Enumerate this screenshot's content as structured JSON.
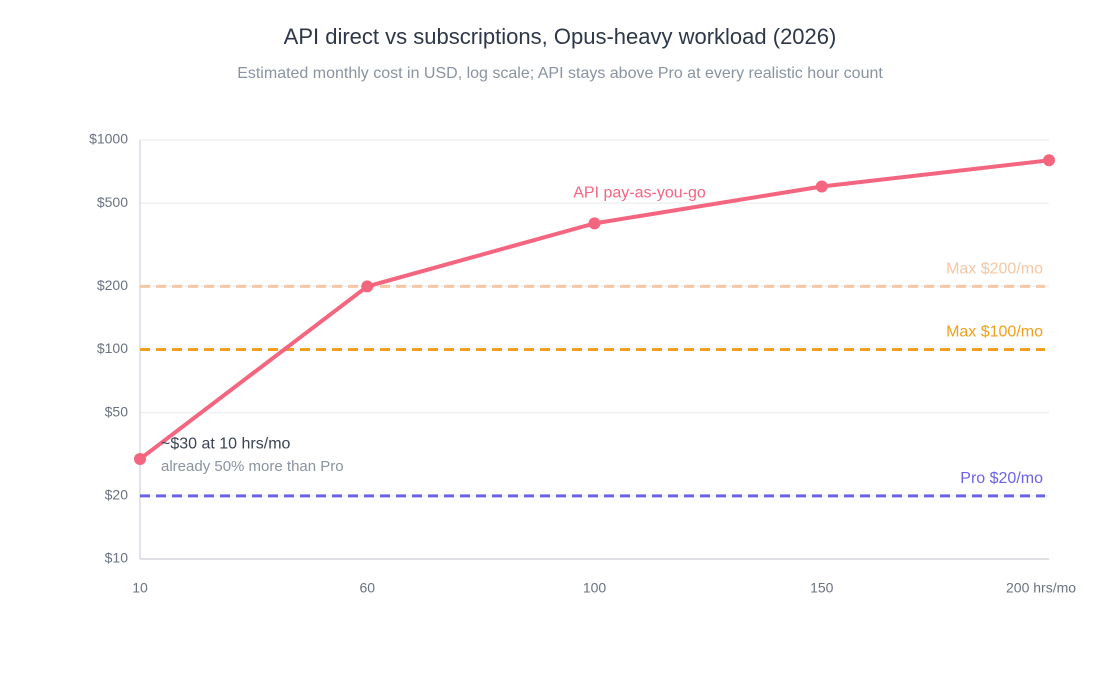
{
  "chart_data": {
    "type": "line",
    "title": "API direct vs subscriptions, Opus-heavy workload (2026)",
    "subtitle": "Estimated monthly cost in USD, log scale; API stays above Pro at every realistic hour count",
    "categories": [
      "10",
      "60",
      "100",
      "150",
      "200 hrs/mo"
    ],
    "series": [
      {
        "name": "API pay-as-you-go",
        "color": "#f4657f",
        "values": [
          30,
          200,
          400,
          600,
          800
        ]
      }
    ],
    "reference_lines": [
      {
        "label": "Max $200/mo",
        "value": 200,
        "color": "#f5c7a3"
      },
      {
        "label": "Max $100/mo",
        "value": 100,
        "color": "#f0a01a"
      },
      {
        "label": "Pro $20/mo",
        "value": 20,
        "color": "#6b63e6"
      }
    ],
    "annotations": [
      {
        "text": "~$30 at 10 hrs/mo",
        "color": "#3b4252"
      },
      {
        "text": "already 50% more than Pro",
        "color": "#8a93a0"
      }
    ],
    "log_scale": true,
    "grid": true,
    "ylim": [
      10,
      1000
    ],
    "yticks": [
      {
        "value": 10,
        "label": "$10"
      },
      {
        "value": 20,
        "label": "$20"
      },
      {
        "value": 50,
        "label": "$50"
      },
      {
        "value": 100,
        "label": "$100"
      },
      {
        "value": 200,
        "label": "$200"
      },
      {
        "value": 500,
        "label": "$500"
      },
      {
        "value": 1000,
        "label": "$1000"
      }
    ]
  }
}
